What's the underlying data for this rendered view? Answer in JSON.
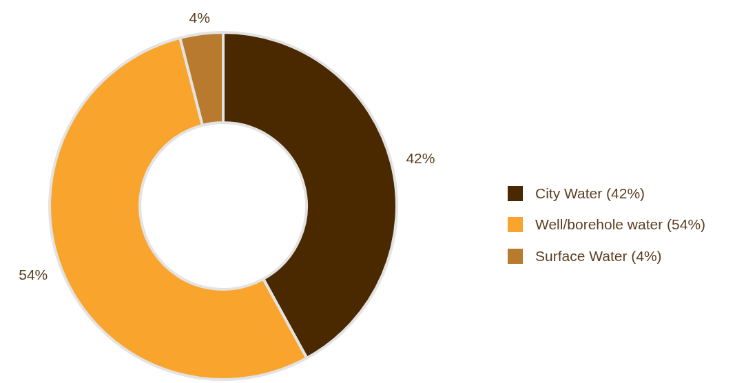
{
  "chart_data": {
    "type": "donut",
    "categories": [
      "City Water (42%)",
      "Well/borehole water (54%)",
      "Surface Water (4%)"
    ],
    "values": [
      42,
      54,
      4
    ],
    "colors": [
      "#4a2800",
      "#f9a52d",
      "#b87a2e"
    ],
    "value_labels": [
      "42%",
      "54%",
      "4%"
    ],
    "legend": "right"
  }
}
